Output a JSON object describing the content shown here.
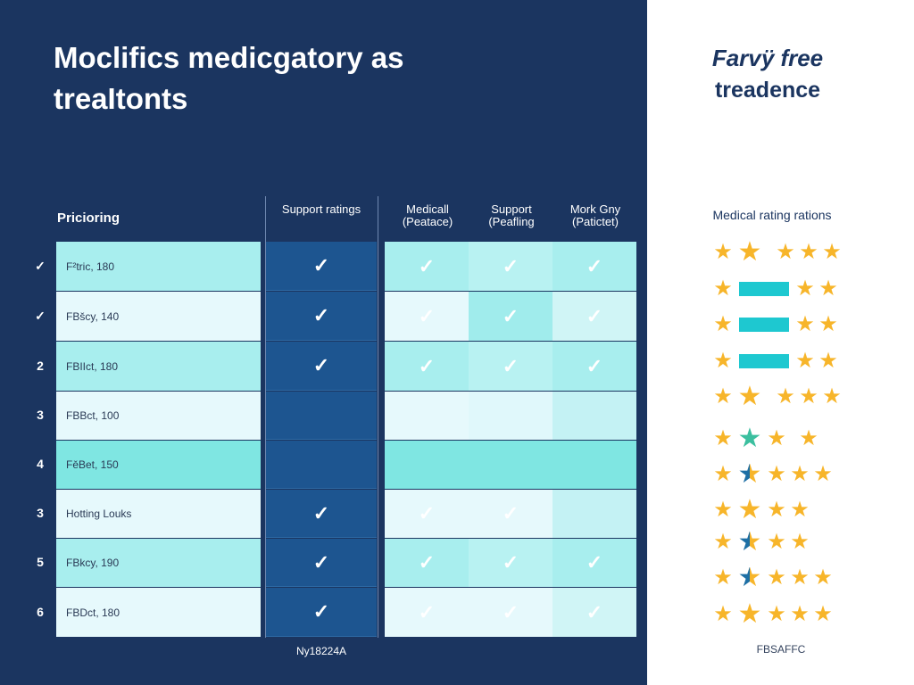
{
  "title": "Moclifics medicgatory as treaItonts",
  "table": {
    "headers": [
      "Pricioring",
      "Support ratings",
      "Medicall (Peatace)",
      "Support (Peafling",
      "Mork Gny (Patictet)"
    ],
    "rows": [
      {
        "marker": "✓",
        "name": "F²tric, 180",
        "support": true,
        "c": [
          true,
          true,
          true
        ]
      },
      {
        "marker": "✓",
        "name": "FBšcy, 140",
        "support": true,
        "c": [
          true,
          true,
          true
        ]
      },
      {
        "marker": "2",
        "name": "FBIIct, 180",
        "support": true,
        "c": [
          true,
          true,
          true
        ]
      },
      {
        "marker": "3",
        "name": "FBBct, 100",
        "support": false,
        "c": [
          false,
          false,
          false
        ]
      },
      {
        "marker": "4",
        "name": "FěBet, 150",
        "support": false,
        "c": [
          false,
          false,
          false
        ]
      },
      {
        "marker": "3",
        "name": "Hotting Louks",
        "support": true,
        "c": [
          true,
          true,
          false
        ]
      },
      {
        "marker": "5",
        "name": "FBkcy, 190",
        "support": true,
        "c": [
          true,
          true,
          true
        ]
      },
      {
        "marker": "6",
        "name": "FBDct, 180",
        "support": true,
        "c": [
          true,
          true,
          true
        ]
      }
    ],
    "check_glyph": "✓",
    "footer": "Ny18224A"
  },
  "right": {
    "title_line1": "Farvÿ free",
    "title_line2": "treadence",
    "subtitle": "Medical rating rations",
    "footer": "FBSAFFC",
    "star_rows": [
      [
        "star",
        "big",
        "gap",
        "star",
        "star",
        "star"
      ],
      [
        "star",
        "bar",
        "star",
        "star"
      ],
      [
        "star",
        "bar",
        "star",
        "star"
      ],
      [
        "star",
        "bar",
        "star",
        "star"
      ],
      [
        "star",
        "big",
        "gap",
        "star",
        "star",
        "star"
      ],
      [
        "star",
        "teal",
        "star",
        "gap",
        "star"
      ],
      [
        "star",
        "half",
        "star",
        "star",
        "star"
      ],
      [
        "star",
        "big",
        "star",
        "star"
      ],
      [
        "star",
        "half",
        "star",
        "star"
      ],
      [
        "star",
        "half",
        "star",
        "star",
        "star"
      ],
      [
        "star",
        "big",
        "star",
        "star",
        "star"
      ]
    ]
  },
  "colors": {
    "panel": "#1b3560",
    "support_col": "#1d5590",
    "star": "#f7b52a",
    "bar": "#1ec8d0"
  }
}
